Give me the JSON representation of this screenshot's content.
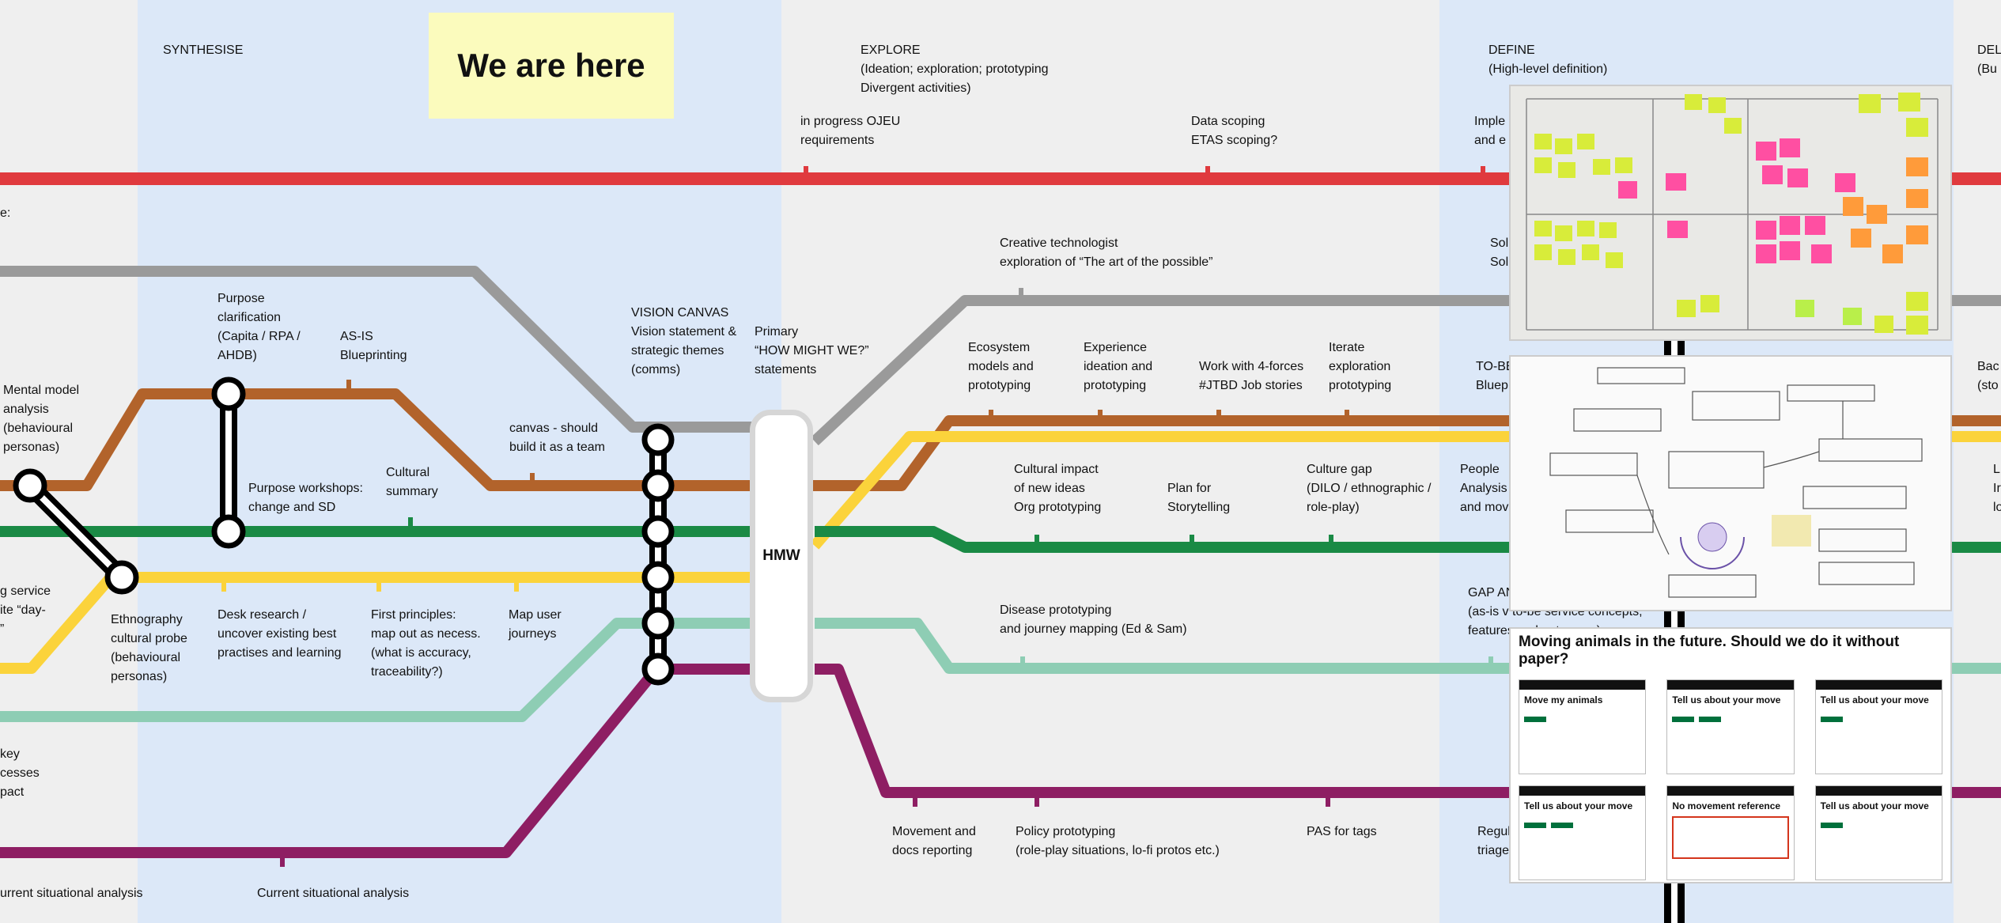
{
  "header": {
    "we_are_here": "We are here",
    "hmw": "HMW"
  },
  "phases": {
    "synthesise": "SYNTHESISE",
    "explore": "EXPLORE\n(Ideation; exploration; prototyping\nDivergent activities)",
    "define": "DEFINE\n(High-level definition)",
    "del": "DEL\n(Bu"
  },
  "labels": {
    "ojeu": "in progress OJEU\nrequirements",
    "data_scoping": "Data scoping\nETAS scoping?",
    "imple": "Imple\nand e",
    "e_colon": "e:",
    "creative_tech": "Creative technologist\nexploration of “The art of the possible”",
    "sol": "Sol\nSol",
    "purpose_clar": "Purpose\nclarification\n(Capita / RPA /\nAHDB)",
    "asis": "AS-IS\nBlueprinting",
    "vision_canvas": "VISION CANVAS\nVision statement &\nstrategic themes\n(comms)",
    "primary_hmw": "Primary\n“HOW MIGHT WE?”\nstatements",
    "ecosystem": "Ecosystem\nmodels and\nprototyping",
    "experience": "Experience\nideation and\nprototyping",
    "four_forces": "Work with 4-forces\n#JTBD Job stories",
    "iterate": "Iterate\nexploration\nprototyping",
    "tobe": "TO-BE\nBluep",
    "bac": "Bac\n(sto",
    "mental_model": "Mental model\nanalysis\n(behavioural\npersonas)",
    "canvas_team": "canvas - should\nbuild it as a team",
    "purpose_workshops": "Purpose workshops:\nchange and SD",
    "cultural_summary": "Cultural\nsummary",
    "cultural_impact": "Cultural impact\nof new ideas\nOrg prototyping",
    "plan_story": "Plan for\nStorytelling",
    "culture_gap": "Culture gap\n(DILO / ethnographic /\nrole-play)",
    "people": "People\nAnalysis\nand move",
    "l_edge": "L\nIr\nlo",
    "g_service": "g service\nite “day-\n”",
    "ethnography": "Ethnography\ncultural probe\n(behavioural\npersonas)",
    "desk_research": "Desk research /\nuncover existing best\npractises and learning",
    "first_principles": "First principles:\nmap out as necess.\n(what is accuracy,\ntraceability?)",
    "map_journeys": "Map user\njourneys",
    "disease": "Disease prototyping\nand journey mapping (Ed & Sam)",
    "gap_an": "GAP AN\n(as-is v to-be service concepts,\nfeatures and outcomes)",
    "key": "key\ncesses\npact",
    "movement_docs": "Movement and\ndocs reporting",
    "policy": "Policy prototyping\n(role-play situations, lo-fi protos etc.)",
    "pas": "PAS for tags",
    "regul": "Regul\ntriage",
    "current_left": "urrent situational analysis",
    "current_mid": "Current situational analysis"
  },
  "mockups": {
    "title": "Moving animals in the future. Should we do it without paper?",
    "screens": [
      "Move my animals",
      "Tell us about your move",
      "Tell us about your move",
      "Tell us about your move",
      "No movement reference",
      "Tell us about your move"
    ]
  },
  "colors": {
    "red": "#e03a3e",
    "grey": "#9a9a9a",
    "brown": "#b2632b",
    "green": "#1a8a45",
    "yellow": "#fbd33b",
    "mint": "#8ecdb4",
    "purple": "#8e1e63",
    "band_blue": "#dce8f8",
    "band_grey": "#efefef"
  }
}
